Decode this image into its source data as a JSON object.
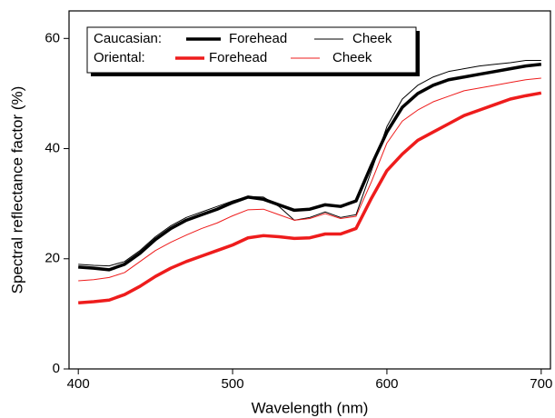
{
  "chart_data": {
    "type": "line",
    "x_label": "Wavelength (nm)",
    "y_label": "Spectral reflectance factor (%)",
    "x": [
      400,
      410,
      420,
      430,
      440,
      450,
      460,
      470,
      480,
      490,
      500,
      510,
      520,
      530,
      540,
      550,
      560,
      570,
      580,
      590,
      600,
      610,
      620,
      630,
      640,
      650,
      660,
      670,
      680,
      690,
      700
    ],
    "legend_groups": [
      "Caucasian:",
      "Oriental:"
    ],
    "series": [
      {
        "name": "Forehead",
        "color": "#000000",
        "line_width": 3.5,
        "values": [
          18.5,
          18.3,
          18,
          19,
          21,
          23.5,
          25.5,
          27,
          28,
          29,
          30.2,
          31.2,
          30.8,
          29.8,
          28.8,
          29,
          29.8,
          29.5,
          30.5,
          37,
          43,
          47.5,
          50,
          51.5,
          52.5,
          53,
          53.5,
          54,
          54.5,
          55,
          55.3
        ]
      },
      {
        "name": "Cheek",
        "color": "#000000",
        "line_width": 1,
        "values": [
          19,
          18.8,
          18.7,
          19.5,
          21.5,
          24,
          26,
          27.5,
          28.5,
          29.5,
          30.5,
          31.3,
          31.2,
          29.5,
          27,
          27.5,
          28.5,
          27.5,
          28,
          36,
          44,
          49,
          51.5,
          53,
          54,
          54.5,
          55,
          55.3,
          55.6,
          56,
          56
        ]
      },
      {
        "name": "Forehead",
        "color": "#ee1c1c",
        "line_width": 3.5,
        "values": [
          12,
          12.2,
          12.5,
          13.5,
          15,
          16.8,
          18.3,
          19.5,
          20.5,
          21.5,
          22.5,
          23.8,
          24.2,
          24,
          23.7,
          23.8,
          24.5,
          24.5,
          25.5,
          31,
          36,
          39,
          41.5,
          43,
          44.5,
          46,
          47,
          48,
          49,
          49.6,
          50.1
        ]
      },
      {
        "name": "Cheek",
        "color": "#ee1c1c",
        "line_width": 1,
        "values": [
          16,
          16.2,
          16.6,
          17.5,
          19.5,
          21.5,
          23,
          24.3,
          25.5,
          26.5,
          27.8,
          28.9,
          29,
          28,
          27,
          27.3,
          28.2,
          27.3,
          27.7,
          34,
          41,
          45,
          47,
          48.5,
          49.5,
          50.5,
          51,
          51.5,
          52,
          52.5,
          52.8
        ]
      }
    ],
    "xlim": [
      394,
      706
    ],
    "ylim": [
      0,
      65
    ],
    "xticks": [
      400,
      500,
      600,
      700
    ],
    "yticks": [
      0,
      20,
      40,
      60
    ],
    "grid": false
  }
}
